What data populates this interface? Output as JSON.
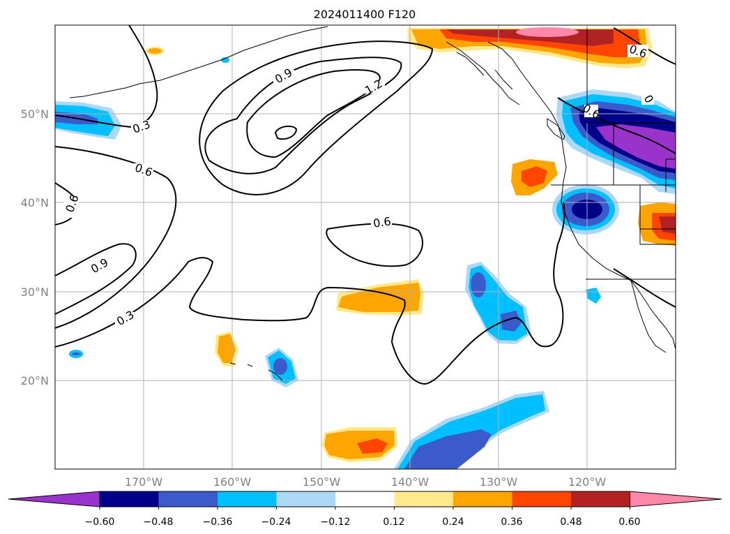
{
  "title": "2024011400 F120",
  "lat_labels": [
    "50°N",
    "40°N",
    "30°N",
    "20°N"
  ],
  "lon_labels": [
    "170°W",
    "160°W",
    "150°W",
    "140°W",
    "130°W",
    "120°W"
  ],
  "contour_labels": [
    "0.9",
    "1.2",
    "0.3",
    "0.6",
    "0.6",
    "0.6",
    "0.9",
    "0.3",
    "0.6",
    "0.6",
    "0"
  ],
  "colorbar": {
    "colors": [
      "#9933cc",
      "#00008b",
      "#3b5bcc",
      "#00bfff",
      "#add8f5",
      "#ffffff",
      "#ffe98a",
      "#ffa500",
      "#ff4500",
      "#b22222",
      "#ff88aa"
    ],
    "tick_labels": [
      "−0.60",
      "−0.48",
      "−0.36",
      "−0.24",
      "−0.12",
      "0.12",
      "0.24",
      "0.36",
      "0.48",
      "0.60"
    ]
  },
  "colors": {
    "gridline": "#b0b0b0",
    "coastline": "#000000",
    "contour": "#000000",
    "label_gray": "#808080"
  }
}
